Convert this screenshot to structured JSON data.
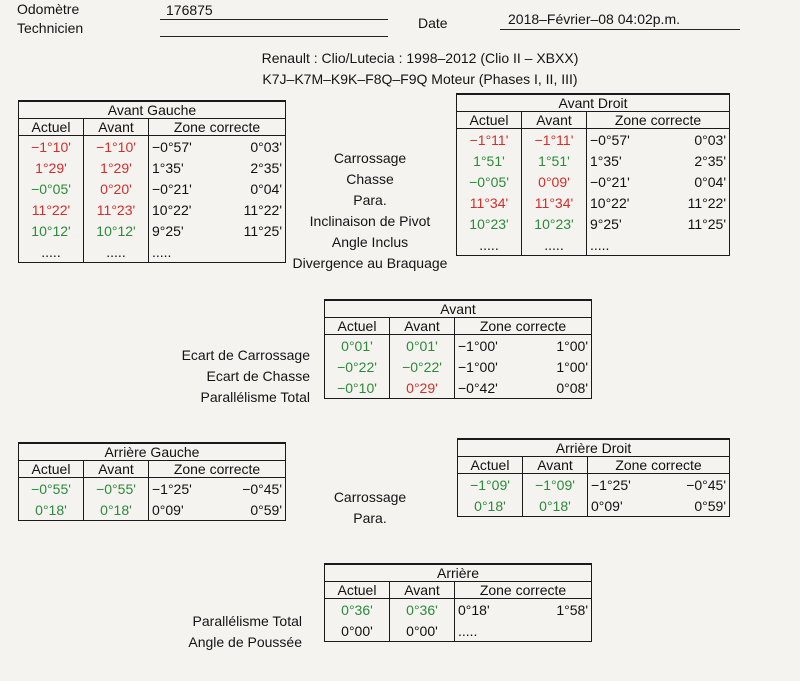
{
  "header": {
    "odometer_label": "Odomètre",
    "odometer_value": "176875",
    "technician_label": "Technicien",
    "date_label": "Date",
    "date_value": "2018–Février–08 04:02p.m."
  },
  "vehicle": {
    "line1": "Renault : Clio/Lutecia : 1998–2012 (Clio II – XBXX)",
    "line2": "K7J–K7M–K9K–F8Q–F9Q Moteur (Phases I, II, III)"
  },
  "columns": {
    "actual": "Actuel",
    "before": "Avant",
    "range": "Zone correcte"
  },
  "front_left": {
    "title": "Avant Gauche",
    "rows": [
      {
        "actual": "−1°10'",
        "actual_color": "red",
        "before": "−1°10'",
        "before_color": "red",
        "min": "−0°57'",
        "max": "0°03'"
      },
      {
        "actual": "1°29'",
        "actual_color": "red",
        "before": "1°29'",
        "before_color": "red",
        "min": "1°35'",
        "max": "2°35'"
      },
      {
        "actual": "−0°05'",
        "actual_color": "green",
        "before": "0°20'",
        "before_color": "red",
        "min": "−0°21'",
        "max": "0°04'"
      },
      {
        "actual": "11°22'",
        "actual_color": "red",
        "before": "11°23'",
        "before_color": "red",
        "min": "10°22'",
        "max": "11°22'"
      },
      {
        "actual": "10°12'",
        "actual_color": "green",
        "before": "10°12'",
        "before_color": "green",
        "min": "9°25'",
        "max": "11°25'"
      },
      {
        "actual": ".....",
        "actual_color": "black",
        "before": ".....",
        "before_color": "black",
        "min": ".....",
        "max": ""
      }
    ]
  },
  "front_labels": [
    "Carrossage",
    "Chasse",
    "Para.",
    "Inclinaison de Pivot",
    "Angle Inclus",
    "Divergence au Braquage"
  ],
  "front_right": {
    "title": "Avant Droit",
    "rows": [
      {
        "actual": "−1°11'",
        "actual_color": "red",
        "before": "−1°11'",
        "before_color": "red",
        "min": "−0°57'",
        "max": "0°03'"
      },
      {
        "actual": "1°51'",
        "actual_color": "green",
        "before": "1°51'",
        "before_color": "green",
        "min": "1°35'",
        "max": "2°35'"
      },
      {
        "actual": "−0°05'",
        "actual_color": "green",
        "before": "0°09'",
        "before_color": "red",
        "min": "−0°21'",
        "max": "0°04'"
      },
      {
        "actual": "11°34'",
        "actual_color": "red",
        "before": "11°34'",
        "before_color": "red",
        "min": "10°22'",
        "max": "11°22'"
      },
      {
        "actual": "10°23'",
        "actual_color": "green",
        "before": "10°23'",
        "before_color": "green",
        "min": "9°25'",
        "max": "11°25'"
      },
      {
        "actual": ".....",
        "actual_color": "black",
        "before": ".....",
        "before_color": "black",
        "min": ".....",
        "max": ""
      }
    ]
  },
  "front_axle": {
    "title": "Avant",
    "labels": [
      "Ecart de Carrossage",
      "Ecart de Chasse",
      "Parallélisme Total"
    ],
    "rows": [
      {
        "actual": "0°01'",
        "actual_color": "green",
        "before": "0°01'",
        "before_color": "green",
        "min": "−1°00'",
        "max": "1°00'"
      },
      {
        "actual": "−0°22'",
        "actual_color": "green",
        "before": "−0°22'",
        "before_color": "green",
        "min": "−1°00'",
        "max": "1°00'"
      },
      {
        "actual": "−0°10'",
        "actual_color": "green",
        "before": "0°29'",
        "before_color": "red",
        "min": "−0°42'",
        "max": "0°08'"
      }
    ]
  },
  "rear_left": {
    "title": "Arrière Gauche",
    "rows": [
      {
        "actual": "−0°55'",
        "actual_color": "green",
        "before": "−0°55'",
        "before_color": "green",
        "min": "−1°25'",
        "max": "−0°45'"
      },
      {
        "actual": "0°18'",
        "actual_color": "green",
        "before": "0°18'",
        "before_color": "green",
        "min": "0°09'",
        "max": "0°59'"
      }
    ]
  },
  "rear_labels": [
    "Carrossage",
    "Para."
  ],
  "rear_right": {
    "title": "Arrière Droit",
    "rows": [
      {
        "actual": "−1°09'",
        "actual_color": "green",
        "before": "−1°09'",
        "before_color": "green",
        "min": "−1°25'",
        "max": "−0°45'"
      },
      {
        "actual": "0°18'",
        "actual_color": "green",
        "before": "0°18'",
        "before_color": "green",
        "min": "0°09'",
        "max": "0°59'"
      }
    ]
  },
  "rear_axle": {
    "title": "Arrière",
    "labels": [
      "Parallélisme Total",
      "Angle de Poussée"
    ],
    "rows": [
      {
        "actual": "0°36'",
        "actual_color": "green",
        "before": "0°36'",
        "before_color": "green",
        "min": "0°18'",
        "max": "1°58'"
      },
      {
        "actual": "0°00'",
        "actual_color": "black",
        "before": "0°00'",
        "before_color": "black",
        "min": ".....",
        "max": ""
      }
    ]
  }
}
